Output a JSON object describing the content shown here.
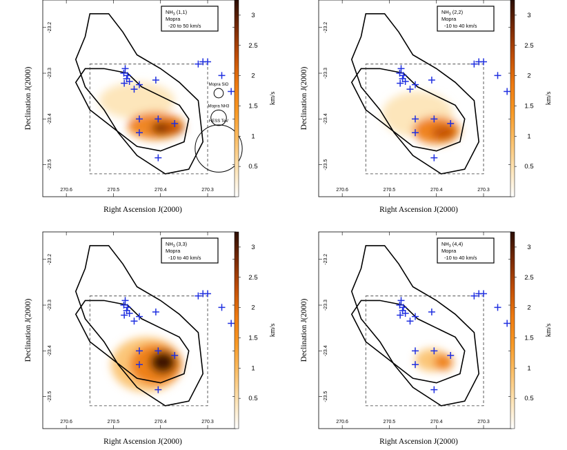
{
  "chart_data": [
    {
      "type": "heatmap",
      "panel": "top-left",
      "legend": {
        "line1": "NH",
        "sub": "3",
        "line1_rest": " (1,1)",
        "line2": "Mopra",
        "line3": "-20 to 50 km/s"
      },
      "xlabel": "Right Ascension J(2000)",
      "ylabel": "Declination J(2000)",
      "x_ticks": [
        270.6,
        270.5,
        270.4,
        270.3
      ],
      "y_ticks": [
        -23.2,
        -23.3,
        -23.4,
        -23.5
      ],
      "xlim": [
        270.65,
        270.24
      ],
      "ylim": [
        -23.57,
        -23.14
      ],
      "colorbar": {
        "label": "km/s",
        "ticks": [
          0.5,
          1,
          1.5,
          2,
          2.5,
          3
        ],
        "range": [
          0,
          3.25
        ]
      },
      "beams": [
        {
          "label": "Mopra SiO",
          "diameter_deg": 0.02
        },
        {
          "label": "Mopra NH3",
          "diameter_deg": 0.033
        },
        {
          "label": "HESS TeV",
          "diameter_deg": 0.1
        }
      ],
      "emission": [
        {
          "ra": 270.45,
          "dec": -23.36,
          "v": 0.6,
          "rx": 0.08,
          "ry": 0.04
        },
        {
          "ra": 270.41,
          "dec": -23.415,
          "v": 1.8,
          "rx": 0.06,
          "ry": 0.03
        },
        {
          "ra": 270.395,
          "dec": -23.42,
          "v": 2.9,
          "rx": 0.025,
          "ry": 0.014
        },
        {
          "ra": 270.37,
          "dec": -23.42,
          "v": 2.3,
          "rx": 0.02,
          "ry": 0.013
        }
      ]
    },
    {
      "type": "heatmap",
      "panel": "top-right",
      "legend": {
        "line1": "NH",
        "sub": "3",
        "line1_rest": " (2,2)",
        "line2": "Mopra",
        "line3": "-10 to 40 km/s"
      },
      "xlabel": "Right Ascension J(2000)",
      "ylabel": "Declination J(2000)",
      "x_ticks": [
        270.6,
        270.5,
        270.4,
        270.3
      ],
      "y_ticks": [
        -23.2,
        -23.3,
        -23.4,
        -23.5
      ],
      "xlim": [
        270.65,
        270.24
      ],
      "ylim": [
        -23.57,
        -23.14
      ],
      "colorbar": {
        "label": "km/s",
        "ticks": [
          0.5,
          1,
          1.5,
          2,
          2.5,
          3
        ],
        "range": [
          0,
          3.25
        ]
      },
      "emission": [
        {
          "ra": 270.44,
          "dec": -23.39,
          "v": 0.6,
          "rx": 0.075,
          "ry": 0.05
        },
        {
          "ra": 270.4,
          "dec": -23.425,
          "v": 1.9,
          "rx": 0.05,
          "ry": 0.03
        },
        {
          "ra": 270.385,
          "dec": -23.43,
          "v": 2.2,
          "rx": 0.025,
          "ry": 0.015
        }
      ]
    },
    {
      "type": "heatmap",
      "panel": "bottom-left",
      "legend": {
        "line1": "NH",
        "sub": "3",
        "line1_rest": " (3,3)",
        "line2": "Mopra",
        "line3": "-10 to 40 km/s"
      },
      "xlabel": "Right Ascension J(2000)",
      "ylabel": "Declination J(2000)",
      "x_ticks": [
        270.6,
        270.5,
        270.4,
        270.3
      ],
      "y_ticks": [
        -23.2,
        -23.3,
        -23.4,
        -23.5
      ],
      "xlim": [
        270.65,
        270.24
      ],
      "ylim": [
        -23.57,
        -23.14
      ],
      "colorbar": {
        "label": "km/s",
        "ticks": [
          0.5,
          1,
          1.5,
          2,
          2.5,
          3
        ],
        "range": [
          0,
          3.25
        ]
      },
      "emission": [
        {
          "ra": 270.43,
          "dec": -23.43,
          "v": 0.8,
          "rx": 0.075,
          "ry": 0.06
        },
        {
          "ra": 270.41,
          "dec": -23.43,
          "v": 2.0,
          "rx": 0.055,
          "ry": 0.045
        },
        {
          "ra": 270.395,
          "dec": -23.425,
          "v": 3.1,
          "rx": 0.028,
          "ry": 0.025
        }
      ]
    },
    {
      "type": "heatmap",
      "panel": "bottom-right",
      "legend": {
        "line1": "NH",
        "sub": "3",
        "line1_rest": " (4,4)",
        "line2": "Mopra",
        "line3": "-10 to 40 km/s"
      },
      "xlabel": "Right Ascension J(2000)",
      "ylabel": "Declination J(2000)",
      "x_ticks": [
        270.6,
        270.5,
        270.4,
        270.3
      ],
      "y_ticks": [
        -23.2,
        -23.3,
        -23.4,
        -23.5
      ],
      "xlim": [
        270.65,
        270.24
      ],
      "ylim": [
        -23.57,
        -23.14
      ],
      "colorbar": {
        "label": "km/s",
        "ticks": [
          0.5,
          1,
          1.5,
          2,
          2.5,
          3
        ],
        "range": [
          0,
          3.25
        ]
      },
      "emission": [
        {
          "ra": 270.41,
          "dec": -23.42,
          "v": 0.9,
          "rx": 0.035,
          "ry": 0.025
        },
        {
          "ra": 270.385,
          "dec": -23.425,
          "v": 1.8,
          "rx": 0.02,
          "ry": 0.018
        }
      ]
    }
  ],
  "shared": {
    "hess_contours": [
      [
        [
          270.56,
          -23.22
        ],
        [
          270.58,
          -23.27
        ],
        [
          270.56,
          -23.33
        ],
        [
          270.52,
          -23.38
        ],
        [
          270.49,
          -23.43
        ],
        [
          270.45,
          -23.48
        ],
        [
          270.39,
          -23.52
        ],
        [
          270.34,
          -23.51
        ],
        [
          270.31,
          -23.45
        ],
        [
          270.32,
          -23.36
        ],
        [
          270.36,
          -23.32
        ],
        [
          270.4,
          -23.29
        ],
        [
          270.45,
          -23.26
        ],
        [
          270.48,
          -23.21
        ],
        [
          270.51,
          -23.17
        ],
        [
          270.55,
          -23.17
        ],
        [
          270.56,
          -23.22
        ]
      ],
      [
        [
          270.58,
          -23.32
        ],
        [
          270.55,
          -23.38
        ],
        [
          270.5,
          -23.42
        ],
        [
          270.45,
          -23.46
        ],
        [
          270.4,
          -23.47
        ],
        [
          270.35,
          -23.45
        ],
        [
          270.34,
          -23.4
        ],
        [
          270.36,
          -23.37
        ],
        [
          270.4,
          -23.35
        ],
        [
          270.44,
          -23.33
        ],
        [
          270.47,
          -23.3
        ],
        [
          270.52,
          -23.29
        ],
        [
          270.56,
          -23.29
        ],
        [
          270.58,
          -23.32
        ]
      ]
    ],
    "mopra_box": {
      "ra": [
        270.55,
        270.3
      ],
      "dec": [
        -23.52,
        -23.28
      ]
    },
    "crosses": [
      [
        270.475,
        -23.29
      ],
      [
        270.478,
        -23.3
      ],
      [
        270.47,
        -23.305
      ],
      [
        270.472,
        -23.312
      ],
      [
        270.466,
        -23.318
      ],
      [
        270.477,
        -23.322
      ],
      [
        270.456,
        -23.335
      ],
      [
        270.445,
        -23.325
      ],
      [
        270.41,
        -23.315
      ],
      [
        270.32,
        -23.28
      ],
      [
        270.31,
        -23.275
      ],
      [
        270.3,
        -23.275
      ],
      [
        270.27,
        -23.305
      ],
      [
        270.25,
        -23.34
      ],
      [
        270.405,
        -23.4
      ],
      [
        270.37,
        -23.41
      ],
      [
        270.445,
        -23.4
      ],
      [
        270.445,
        -23.43
      ],
      [
        270.405,
        -23.485
      ]
    ],
    "colorbar_colors": [
      "#ffffff",
      "#fde3b4",
      "#fbc06a",
      "#f99a26",
      "#ee7a10",
      "#c04d06",
      "#7a2a04",
      "#2b0e02"
    ]
  }
}
